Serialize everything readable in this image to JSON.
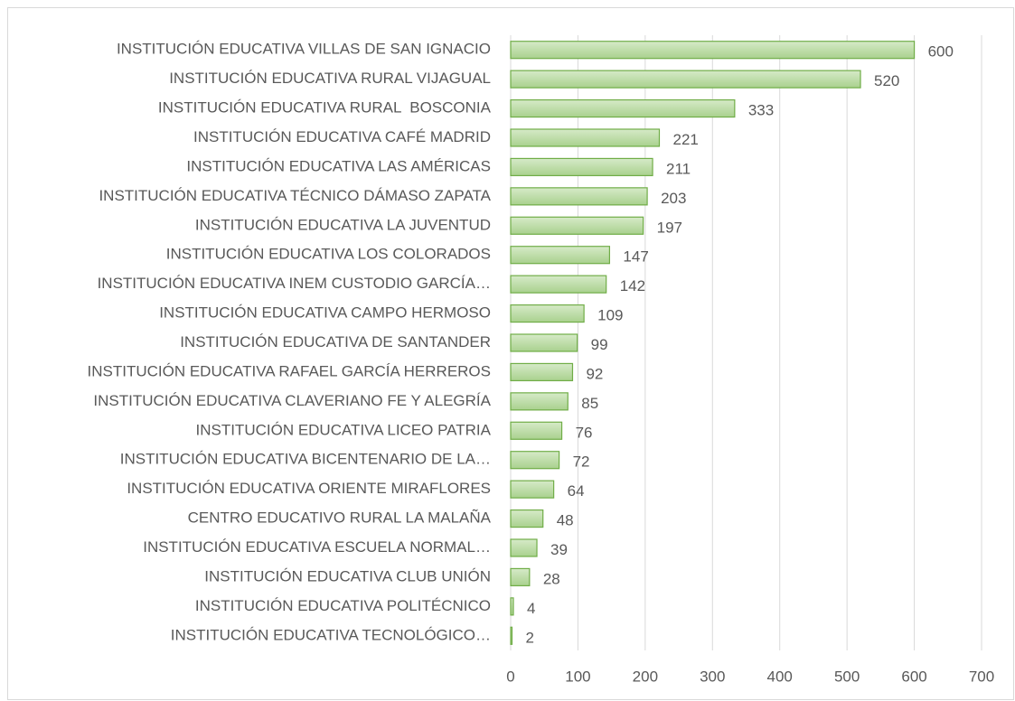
{
  "chart_data": {
    "type": "bar",
    "categories": [
      "INSTITUCIÓN EDUCATIVA VILLAS DE SAN IGNACIO",
      "INSTITUCIÓN EDUCATIVA RURAL VIJAGUAL",
      "INSTITUCIÓN EDUCATIVA RURAL  BOSCONIA",
      "INSTITUCIÓN EDUCATIVA CAFÉ MADRID",
      "INSTITUCIÓN EDUCATIVA LAS AMÉRICAS",
      "INSTITUCIÓN EDUCATIVA TÉCNICO DÁMASO ZAPATA",
      "INSTITUCIÓN EDUCATIVA LA JUVENTUD",
      "INSTITUCIÓN EDUCATIVA LOS COLORADOS",
      "INSTITUCIÓN EDUCATIVA INEM CUSTODIO GARCÍA…",
      "INSTITUCIÓN EDUCATIVA CAMPO HERMOSO",
      "INSTITUCIÓN EDUCATIVA DE SANTANDER",
      "INSTITUCIÓN EDUCATIVA RAFAEL GARCÍA HERREROS",
      "INSTITUCIÓN EDUCATIVA CLAVERIANO FE Y ALEGRÍA",
      "INSTITUCIÓN EDUCATIVA LICEO PATRIA",
      "INSTITUCIÓN EDUCATIVA BICENTENARIO DE LA…",
      "INSTITUCIÓN EDUCATIVA ORIENTE MIRAFLORES",
      "CENTRO EDUCATIVO RURAL LA MALAÑA",
      "INSTITUCIÓN EDUCATIVA ESCUELA NORMAL…",
      "INSTITUCIÓN EDUCATIVA CLUB UNIÓN",
      "INSTITUCIÓN EDUCATIVA POLITÉCNICO",
      "INSTITUCIÓN EDUCATIVA TECNOLÓGICO…"
    ],
    "values": [
      600,
      520,
      333,
      221,
      211,
      203,
      197,
      147,
      142,
      109,
      99,
      92,
      85,
      76,
      72,
      64,
      48,
      39,
      28,
      4,
      2
    ],
    "color": "#a9d18e",
    "edge_color": "#70ad47",
    "xlim": [
      0,
      700
    ],
    "xticks": [
      0,
      100,
      200,
      300,
      400,
      500,
      600,
      700
    ],
    "grid": true
  }
}
